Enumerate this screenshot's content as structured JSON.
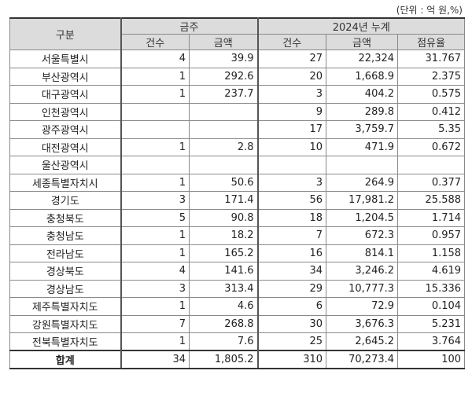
{
  "unit_note": "(단위 : 억 원,%)",
  "headers": {
    "category": "구분",
    "this_week": "금주",
    "cumulative": "2024년 누계",
    "count": "건수",
    "amount": "금액",
    "count2": "건수",
    "amount2": "금액",
    "share": "점유율"
  },
  "rows": [
    {
      "region": "서울특별시",
      "week_count": "4",
      "week_amount": "39.9",
      "cum_count": "27",
      "cum_amount": "22,324",
      "share": "31.767"
    },
    {
      "region": "부산광역시",
      "week_count": "1",
      "week_amount": "292.6",
      "cum_count": "20",
      "cum_amount": "1,668.9",
      "share": "2.375"
    },
    {
      "region": "대구광역시",
      "week_count": "1",
      "week_amount": "237.7",
      "cum_count": "3",
      "cum_amount": "404.2",
      "share": "0.575"
    },
    {
      "region": "인천광역시",
      "week_count": "",
      "week_amount": "",
      "cum_count": "9",
      "cum_amount": "289.8",
      "share": "0.412"
    },
    {
      "region": "광주광역시",
      "week_count": "",
      "week_amount": "",
      "cum_count": "17",
      "cum_amount": "3,759.7",
      "share": "5.35"
    },
    {
      "region": "대전광역시",
      "week_count": "1",
      "week_amount": "2.8",
      "cum_count": "10",
      "cum_amount": "471.9",
      "share": "0.672"
    },
    {
      "region": "울산광역시",
      "week_count": "",
      "week_amount": "",
      "cum_count": "",
      "cum_amount": "",
      "share": ""
    },
    {
      "region": "세종특별자치시",
      "week_count": "1",
      "week_amount": "50.6",
      "cum_count": "3",
      "cum_amount": "264.9",
      "share": "0.377"
    },
    {
      "region": "경기도",
      "week_count": "3",
      "week_amount": "171.4",
      "cum_count": "56",
      "cum_amount": "17,981.2",
      "share": "25.588"
    },
    {
      "region": "충청북도",
      "week_count": "5",
      "week_amount": "90.8",
      "cum_count": "18",
      "cum_amount": "1,204.5",
      "share": "1.714"
    },
    {
      "region": "충청남도",
      "week_count": "1",
      "week_amount": "18.2",
      "cum_count": "7",
      "cum_amount": "672.3",
      "share": "0.957"
    },
    {
      "region": "전라남도",
      "week_count": "1",
      "week_amount": "165.2",
      "cum_count": "16",
      "cum_amount": "814.1",
      "share": "1.158"
    },
    {
      "region": "경상북도",
      "week_count": "4",
      "week_amount": "141.6",
      "cum_count": "34",
      "cum_amount": "3,246.2",
      "share": "4.619"
    },
    {
      "region": "경상남도",
      "week_count": "3",
      "week_amount": "313.4",
      "cum_count": "29",
      "cum_amount": "10,777.3",
      "share": "15.336"
    },
    {
      "region": "제주특별자치도",
      "week_count": "1",
      "week_amount": "4.6",
      "cum_count": "6",
      "cum_amount": "72.9",
      "share": "0.104"
    },
    {
      "region": "강원특별자치도",
      "week_count": "7",
      "week_amount": "268.8",
      "cum_count": "30",
      "cum_amount": "3,676.3",
      "share": "5.231"
    },
    {
      "region": "전북특별자치도",
      "week_count": "1",
      "week_amount": "7.6",
      "cum_count": "25",
      "cum_amount": "2,645.2",
      "share": "3.764"
    }
  ],
  "total": {
    "region": "합계",
    "week_count": "34",
    "week_amount": "1,805.2",
    "cum_count": "310",
    "cum_amount": "70,273.4",
    "share": "100"
  }
}
